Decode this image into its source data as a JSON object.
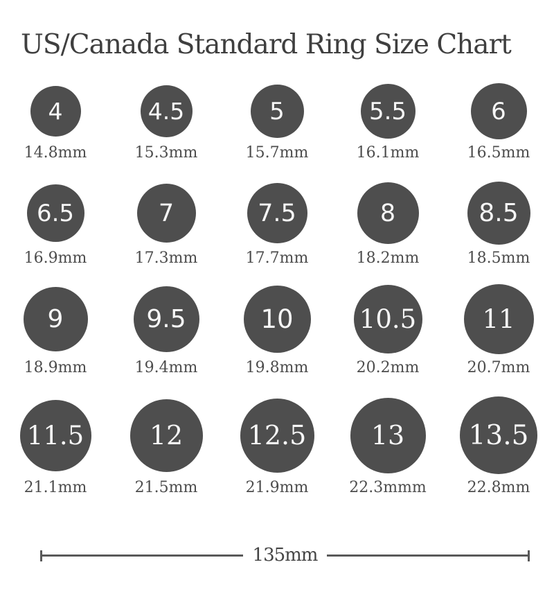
{
  "title": "US/Canada Standard Ring Size Chart",
  "colors": {
    "circle_fill": "#4e4e4e",
    "circle_text": "#f7f7f7",
    "title_text": "#3f3f3f",
    "label_text": "#4c4c4c",
    "ruler_line": "#595959",
    "background": "#ffffff"
  },
  "ruler": {
    "label": "135mm"
  },
  "rows": [
    [
      {
        "size": "4",
        "mm": 14.8,
        "diameter_label": "14.8mm",
        "font": "sans"
      },
      {
        "size": "4.5",
        "mm": 15.3,
        "diameter_label": "15.3mm",
        "font": "sans"
      },
      {
        "size": "5",
        "mm": 15.7,
        "diameter_label": "15.7mm",
        "font": "sans"
      },
      {
        "size": "5.5",
        "mm": 16.1,
        "diameter_label": "16.1mm",
        "font": "sans"
      },
      {
        "size": "6",
        "mm": 16.5,
        "diameter_label": "16.5mm",
        "font": "sans"
      }
    ],
    [
      {
        "size": "6.5",
        "mm": 16.9,
        "diameter_label": "16.9mm",
        "font": "sans"
      },
      {
        "size": "7",
        "mm": 17.3,
        "diameter_label": "17.3mm",
        "font": "sans"
      },
      {
        "size": "7.5",
        "mm": 17.7,
        "diameter_label": "17.7mm",
        "font": "sans"
      },
      {
        "size": "8",
        "mm": 18.2,
        "diameter_label": "18.2mm",
        "font": "sans"
      },
      {
        "size": "8.5",
        "mm": 18.5,
        "diameter_label": "18.5mm",
        "font": "sans"
      }
    ],
    [
      {
        "size": "9",
        "mm": 18.9,
        "diameter_label": "18.9mm",
        "font": "sans"
      },
      {
        "size": "9.5",
        "mm": 19.4,
        "diameter_label": "19.4mm",
        "font": "sans"
      },
      {
        "size": "10",
        "mm": 19.8,
        "diameter_label": "19.8mm",
        "font": "sans"
      },
      {
        "size": "10.5",
        "mm": 20.2,
        "diameter_label": "20.2mm",
        "font": "serif"
      },
      {
        "size": "11",
        "mm": 20.7,
        "diameter_label": "20.7mm",
        "font": "serif"
      }
    ],
    [
      {
        "size": "11.5",
        "mm": 21.1,
        "diameter_label": "21.1mm",
        "font": "serif"
      },
      {
        "size": "12",
        "mm": 21.5,
        "diameter_label": "21.5mm",
        "font": "serif"
      },
      {
        "size": "12.5",
        "mm": 21.9,
        "diameter_label": "21.9mm",
        "font": "serif"
      },
      {
        "size": "13",
        "mm": 22.3,
        "diameter_label": "22.3mmm",
        "font": "serif"
      },
      {
        "size": "13.5",
        "mm": 22.8,
        "diameter_label": "22.8mm",
        "font": "serif"
      }
    ]
  ]
}
